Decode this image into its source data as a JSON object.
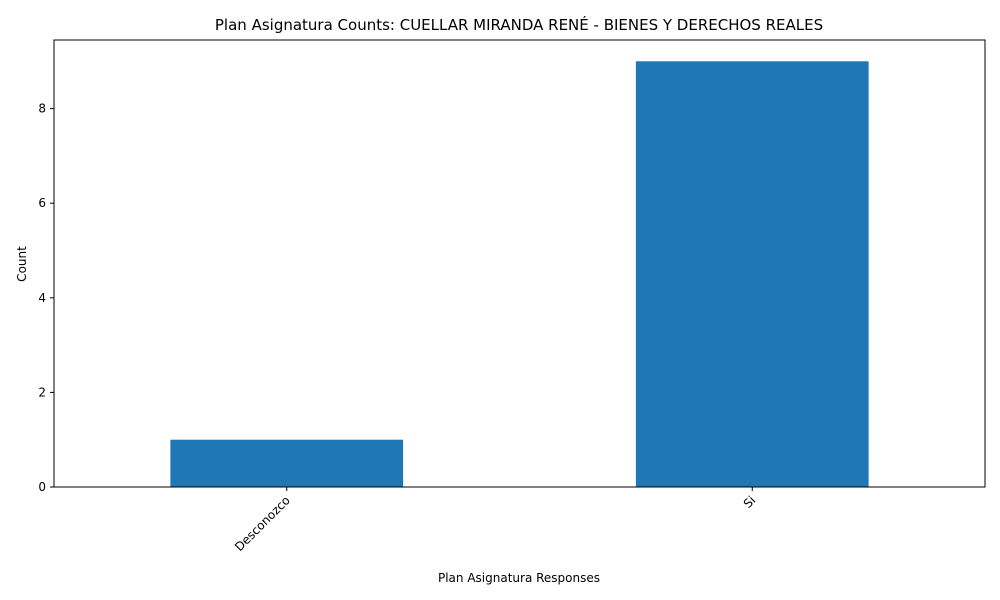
{
  "chart_data": {
    "type": "bar",
    "title": "Plan Asignatura Counts: CUELLAR MIRANDA RENÉ - BIENES Y DERECHOS REALES",
    "xlabel": "Plan Asignatura Responses",
    "ylabel": "Count",
    "categories": [
      "Desconozco",
      "Si"
    ],
    "values": [
      1,
      9
    ],
    "ylim": [
      0,
      9.45
    ],
    "yticks": [
      "0",
      "2",
      "4",
      "6",
      "8"
    ],
    "bar_color": "#1f77b4",
    "grid": false,
    "legend": "none"
  }
}
